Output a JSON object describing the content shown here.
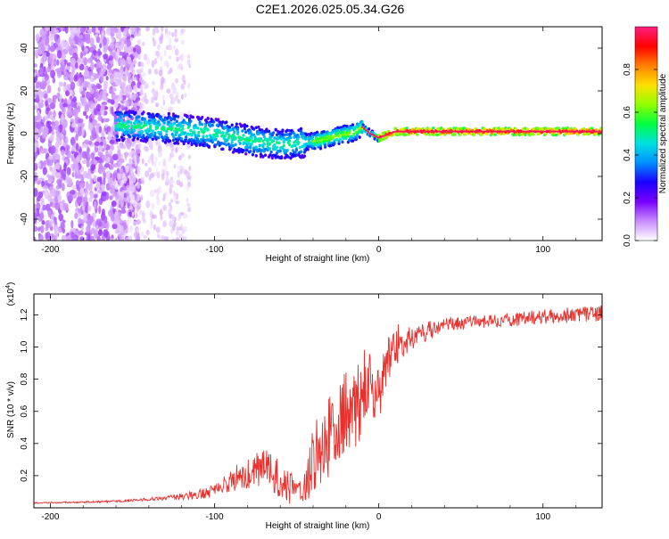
{
  "title": "C2E1.2026.025.05.34.G26",
  "colors": {
    "line": "#e8302c",
    "axis": "#000000",
    "colorbar_stops": [
      "#ffffff",
      "#c98cff",
      "#7a00ff",
      "#1a00ff",
      "#0090ff",
      "#00e0e0",
      "#00ff40",
      "#90ff00",
      "#ffe000",
      "#ff8000",
      "#ff0000",
      "#ff1f7f"
    ]
  },
  "chart_data": [
    {
      "type": "heatmap",
      "xlabel": "Height of straight line (km)",
      "ylabel": "Frequency (Hz)",
      "xlim": [
        -210,
        136
      ],
      "ylim": [
        -50,
        50
      ],
      "xticks": [
        -200,
        -100,
        0,
        100
      ],
      "xtick_labels": [
        "-200",
        "-100",
        "0",
        "100"
      ],
      "yticks": [
        -40,
        -20,
        0,
        20,
        40
      ],
      "ytick_labels": [
        "-40",
        "-20",
        "0",
        "20",
        "40"
      ],
      "colorbar": {
        "label": "Normalized spectral amplitude",
        "range": [
          0,
          1
        ],
        "ticks": [
          0.0,
          0.2,
          0.4,
          0.6,
          0.8
        ],
        "tick_labels": [
          "0.0",
          "0.2",
          "0.4",
          "0.6",
          "0.8"
        ]
      },
      "ridge": {
        "x": [
          -160,
          -140,
          -120,
          -100,
          -80,
          -60,
          -45,
          -35,
          -25,
          -15,
          -10,
          -5,
          0,
          10,
          50,
          100,
          136
        ],
        "freq": [
          4,
          3,
          2,
          0,
          -3,
          -5,
          -4,
          -3,
          -1,
          0.5,
          3,
          0,
          -2,
          1,
          1,
          1,
          1
        ]
      }
    },
    {
      "type": "line",
      "xlabel": "Height of straight line (km)",
      "ylabel": "SNR (10 * v/v)",
      "y_multiplier_label": "(x10",
      "y_multiplier_exp": "4",
      "y_multiplier_close": ")",
      "xlim": [
        -210,
        136
      ],
      "ylim": [
        0,
        1.33
      ],
      "xticks": [
        -200,
        -100,
        0,
        100
      ],
      "xtick_labels": [
        "-200",
        "-100",
        "0",
        "100"
      ],
      "yticks": [
        0.2,
        0.4,
        0.6,
        0.8,
        1.0,
        1.2
      ],
      "ytick_labels": [
        "0.2",
        "0.4",
        "0.6",
        "0.8",
        "1.0",
        "1.2"
      ],
      "trend": {
        "x": [
          -210,
          -160,
          -130,
          -110,
          -100,
          -90,
          -80,
          -70,
          -60,
          -50,
          -45,
          -40,
          -35,
          -30,
          -25,
          -20,
          -15,
          -10,
          -5,
          0,
          5,
          10,
          20,
          30,
          40,
          60,
          80,
          100,
          120,
          136
        ],
        "y": [
          0.03,
          0.04,
          0.06,
          0.08,
          0.11,
          0.17,
          0.22,
          0.25,
          0.18,
          0.12,
          0.1,
          0.3,
          0.38,
          0.45,
          0.5,
          0.58,
          0.62,
          0.7,
          0.78,
          0.68,
          0.92,
          1.0,
          1.06,
          1.1,
          1.14,
          1.16,
          1.17,
          1.19,
          1.2,
          1.21
        ]
      },
      "noise": {
        "x": [
          -210,
          -160,
          -130,
          -100,
          -80,
          -55,
          -50,
          -40,
          -30,
          -10,
          0,
          10,
          20,
          40,
          136
        ],
        "amp": [
          0.004,
          0.006,
          0.012,
          0.04,
          0.1,
          0.14,
          0.03,
          0.2,
          0.26,
          0.28,
          0.18,
          0.14,
          0.08,
          0.04,
          0.05
        ]
      }
    }
  ]
}
